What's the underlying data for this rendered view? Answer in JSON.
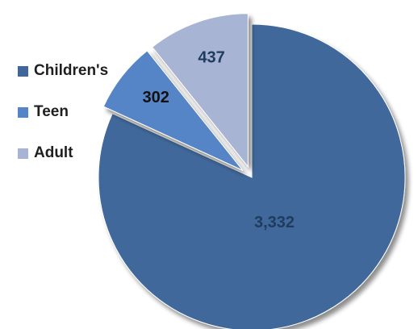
{
  "chart_data": {
    "type": "pie",
    "categories": [
      "Children's",
      "Teen",
      "Adult"
    ],
    "values": [
      3332,
      302,
      437
    ],
    "data_labels": [
      "3,332",
      "302",
      "437"
    ],
    "colors": [
      "#41679a",
      "#5585c6",
      "#a7b4d3"
    ],
    "label_color": "#1f3b5e",
    "exploded": [
      false,
      true,
      true
    ],
    "legend_position": "left",
    "title": ""
  }
}
